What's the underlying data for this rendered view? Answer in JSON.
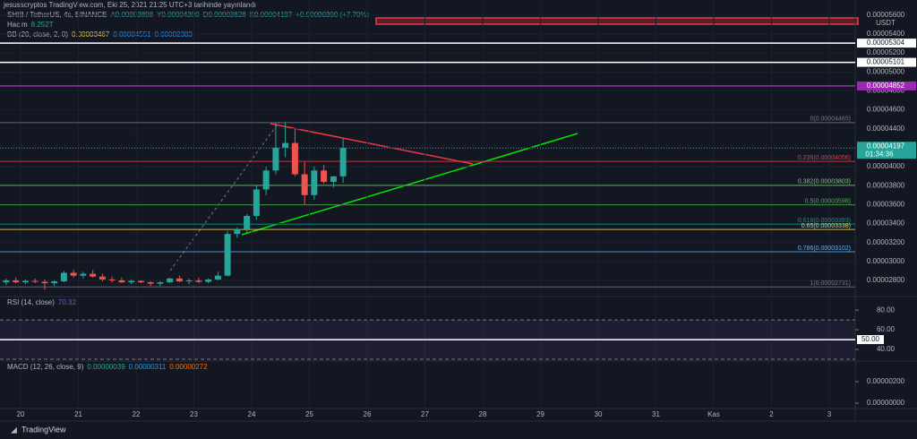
{
  "header": {
    "publisher": "jesusscryptos TradingView.com, Eki 25, 2021 21:25 UTC+3 tarihinde yayınlandı",
    "symbol": "SHIB / TetherUS, 4s, BINANCE",
    "ohlc": [
      "A0.00003898",
      "Y0.00004300",
      "D0.00003828",
      "K0.00004197"
    ],
    "change": "+0.00000300 (+7.70%)",
    "volume_label": "Hacim",
    "volume": "8.252T",
    "bb": "BB (20, close, 2, 0)",
    "bb_values": [
      "0.00003467",
      "0.00004551",
      "0.00002383"
    ]
  },
  "chart_data": [
    {
      "type": "candlestick",
      "currency": "USDT",
      "up_color": "#26a69a",
      "down_color": "#ef5350",
      "x": [
        19.75,
        19.917,
        20.083,
        20.25,
        20.417,
        20.583,
        20.75,
        20.917,
        21.083,
        21.25,
        21.417,
        21.583,
        21.75,
        21.917,
        22.083,
        22.25,
        22.417,
        22.583,
        22.75,
        22.917,
        23.083,
        23.25,
        23.417,
        23.583,
        23.75,
        23.917,
        24.083,
        24.25,
        24.417,
        24.583,
        24.75,
        24.917,
        25.083,
        25.25,
        25.417,
        25.583
      ],
      "open": [
        2.78e-05,
        2.8e-05,
        2.78e-05,
        2.795e-05,
        2.785e-05,
        2.77e-05,
        2.79e-05,
        2.88e-05,
        2.85e-05,
        2.87e-05,
        2.84e-05,
        2.81e-05,
        2.8e-05,
        2.78e-05,
        2.795e-05,
        2.78e-05,
        2.765e-05,
        2.78e-05,
        2.82e-05,
        2.79e-05,
        2.8e-05,
        2.785e-05,
        2.81e-05,
        2.85e-05,
        3.29e-05,
        3.34e-05,
        3.48e-05,
        3.76e-05,
        3.96e-05,
        4.2e-05,
        4.25e-05,
        3.92e-05,
        3.7e-05,
        3.96e-05,
        3.84e-05,
        3.898e-05
      ],
      "high": [
        2.82e-05,
        2.83e-05,
        2.81e-05,
        2.82e-05,
        2.81e-05,
        2.8e-05,
        2.9e-05,
        2.91e-05,
        2.89e-05,
        2.91e-05,
        2.87e-05,
        2.84e-05,
        2.83e-05,
        2.81e-05,
        2.8e-05,
        2.79e-05,
        2.79e-05,
        2.83e-05,
        2.85e-05,
        2.82e-05,
        2.83e-05,
        2.82e-05,
        2.89e-05,
        3.32e-05,
        3.36e-05,
        3.5e-05,
        3.8e-05,
        4e-05,
        4.47e-05,
        4.465e-05,
        4.4e-05,
        4.05e-05,
        4e-05,
        4.02e-05,
        3.9e-05,
        4.3e-05
      ],
      "low": [
        2.75e-05,
        2.77e-05,
        2.76e-05,
        2.77e-05,
        2.7e-05,
        2.74e-05,
        2.78e-05,
        2.83e-05,
        2.82e-05,
        2.83e-05,
        2.79e-05,
        2.78e-05,
        2.77e-05,
        2.76e-05,
        2.77e-05,
        2.74e-05,
        2.74e-05,
        2.77e-05,
        2.78e-05,
        2.76e-05,
        2.77e-05,
        2.77e-05,
        2.8e-05,
        2.84e-05,
        3.25e-05,
        3.3e-05,
        3.44e-05,
        3.7e-05,
        3.92e-05,
        4.1e-05,
        3.9e-05,
        3.6e-05,
        3.65e-05,
        3.82e-05,
        3.78e-05,
        3.828e-05
      ],
      "close": [
        2.8e-05,
        2.78e-05,
        2.795e-05,
        2.785e-05,
        2.77e-05,
        2.79e-05,
        2.88e-05,
        2.85e-05,
        2.87e-05,
        2.84e-05,
        2.81e-05,
        2.8e-05,
        2.78e-05,
        2.795e-05,
        2.78e-05,
        2.765e-05,
        2.78e-05,
        2.82e-05,
        2.79e-05,
        2.8e-05,
        2.785e-05,
        2.81e-05,
        2.85e-05,
        3.29e-05,
        3.34e-05,
        3.48e-05,
        3.76e-05,
        3.96e-05,
        4.2e-05,
        4.25e-05,
        3.92e-05,
        3.7e-05,
        3.96e-05,
        3.84e-05,
        3.898e-05,
        4.197e-05
      ],
      "xlim": [
        19.643,
        34.45
      ],
      "xticks": [
        20,
        21,
        22,
        23,
        24,
        25,
        26,
        27,
        28,
        29,
        30,
        31,
        {
          "value": 32,
          "label": "Kas"
        },
        {
          "value": 33,
          "label": "2"
        },
        {
          "value": 34,
          "label": "3"
        }
      ],
      "ylim": [
        2.639e-05,
        5.759e-05
      ],
      "yticks": [
        {
          "value": 5.6e-05,
          "label": "0.00005600"
        },
        {
          "value": 5.4e-05,
          "label": "0.00005400"
        },
        {
          "value": 5.2e-05,
          "label": "0.00005200"
        },
        {
          "value": 5e-05,
          "label": "0.00005000"
        },
        {
          "value": 4.8e-05,
          "label": "0.00004800"
        },
        {
          "value": 4.6e-05,
          "label": "0.00004600"
        },
        {
          "value": 4.4e-05,
          "label": "0.00004400"
        },
        {
          "value": 4.2e-05,
          "label": "0.00004200"
        },
        {
          "value": 4e-05,
          "label": "0.00004000"
        },
        {
          "value": 3.8e-05,
          "label": "0.00003800"
        },
        {
          "value": 3.6e-05,
          "label": "0.00003600"
        },
        {
          "value": 3.4e-05,
          "label": "0.00003400"
        },
        {
          "value": 3.2e-05,
          "label": "0.00003200"
        },
        {
          "value": 3e-05,
          "label": "0.00003000"
        },
        {
          "value": 2.8e-05,
          "label": "0.00002800"
        }
      ],
      "levels": [
        {
          "value": 5.304e-05,
          "color": "#ffffff"
        },
        {
          "value": 5.101e-05,
          "color": "#ffffff"
        },
        {
          "value": 4.852e-05,
          "color": "#9c27b0"
        }
      ],
      "fib": [
        {
          "value": 4.465e-05,
          "label": "0(0.00004465)",
          "color": "#787b86"
        },
        {
          "value": 4.056e-05,
          "label": "0.236(0.00004056)",
          "color": "#f23645"
        },
        {
          "value": 3.803e-05,
          "label": "0.382(0.00003803)",
          "color": "#81c784"
        },
        {
          "value": 3.598e-05,
          "label": "0.5(0.00003598)",
          "color": "#4caf50"
        },
        {
          "value": 3.393e-05,
          "label": "0.618(0.00003393)",
          "color": "#089981"
        },
        {
          "value": 3.338e-05,
          "label": "0.65(0.00003338)",
          "color": "#f5d547"
        },
        {
          "value": 3.102e-05,
          "label": "0.786(0.00003102)",
          "color": "#64b5f6"
        },
        {
          "value": 2.731e-05,
          "label": "1(0.00002731)",
          "color": "#787b86"
        }
      ],
      "last_price": 4.197e-05,
      "countdown": "01:34:36"
    },
    {
      "type": "indicator",
      "title": "RSI (14, close)",
      "value": "70.32",
      "value_color": "#7e57c2",
      "ylim": [
        30,
        92
      ],
      "yticks": [
        {
          "value": 80,
          "label": "80.00"
        },
        {
          "value": 60,
          "label": "60.00"
        },
        {
          "value": 40,
          "label": "40.00"
        }
      ],
      "bands": [
        70,
        30
      ],
      "marker": {
        "value": 50,
        "label": "50.00"
      }
    },
    {
      "type": "indicator",
      "title": "MACD (12, 26, close, 9)",
      "values": [
        "0.00000039",
        "0.00000311",
        "0.00000272"
      ],
      "value_colors": [
        "#26a69a",
        "#2196f3",
        "#ff6d00"
      ],
      "ylim": [
        -4.2e-07,
        3.75e-06
      ],
      "yticks": [
        {
          "value": 2e-06,
          "label": "0.00000200"
        },
        {
          "value": 0,
          "label": "0.00000000"
        }
      ]
    }
  ],
  "footer": {
    "brand": "TradingView"
  }
}
